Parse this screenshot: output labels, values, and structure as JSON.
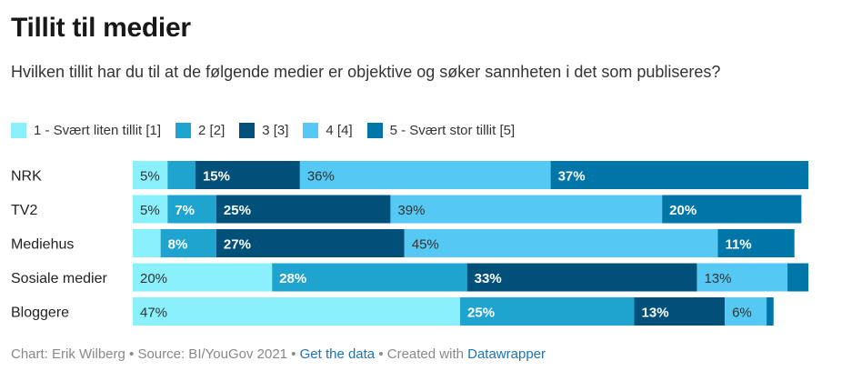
{
  "title": "Tillit til medier",
  "subtitle": "Hvilken tillit har du til at de følgende medier er objektive og søker sannheten i det som publiseres?",
  "legend": [
    {
      "label": "1 - Svært liten tillit [1]",
      "color": "#8af0fb"
    },
    {
      "label": "2 [2]",
      "color": "#1fa3cf"
    },
    {
      "label": "3 [3]",
      "color": "#00507a"
    },
    {
      "label": "4 [4]",
      "color": "#55c8f3"
    },
    {
      "label": "5 - Svært stor tillit [5]",
      "color": "#0075a8"
    }
  ],
  "chart_data": {
    "type": "bar",
    "orientation": "horizontal-stacked",
    "categories": [
      "NRK",
      "TV2",
      "Mediehus",
      "Sosiale medier",
      "Bloggere"
    ],
    "series": [
      {
        "name": "1 - Svært liten tillit [1]",
        "values": [
          5,
          5,
          4,
          20,
          47
        ],
        "labels": [
          "5%",
          "5%",
          "",
          "20%",
          "47%"
        ]
      },
      {
        "name": "2 [2]",
        "values": [
          4,
          7,
          8,
          28,
          25
        ],
        "labels": [
          "",
          "7%",
          "8%",
          "28%",
          "25%"
        ]
      },
      {
        "name": "3 [3]",
        "values": [
          15,
          25,
          27,
          33,
          13
        ],
        "labels": [
          "15%",
          "25%",
          "27%",
          "33%",
          "13%"
        ]
      },
      {
        "name": "4 [4]",
        "values": [
          36,
          39,
          45,
          13,
          6
        ],
        "labels": [
          "36%",
          "39%",
          "45%",
          "13%",
          "6%"
        ]
      },
      {
        "name": "5 - Svært stor tillit [5]",
        "values": [
          37,
          20,
          11,
          3,
          1
        ],
        "labels": [
          "37%",
          "20%",
          "11%",
          "",
          ""
        ]
      }
    ],
    "xlim": [
      0,
      100
    ],
    "grid": false
  },
  "footer": {
    "prefix": "Chart: Erik Wilberg • Source: BI/YouGov 2021 • ",
    "get_data": "Get the data",
    "middle": " • Created with ",
    "datawrapper": "Datawrapper"
  }
}
